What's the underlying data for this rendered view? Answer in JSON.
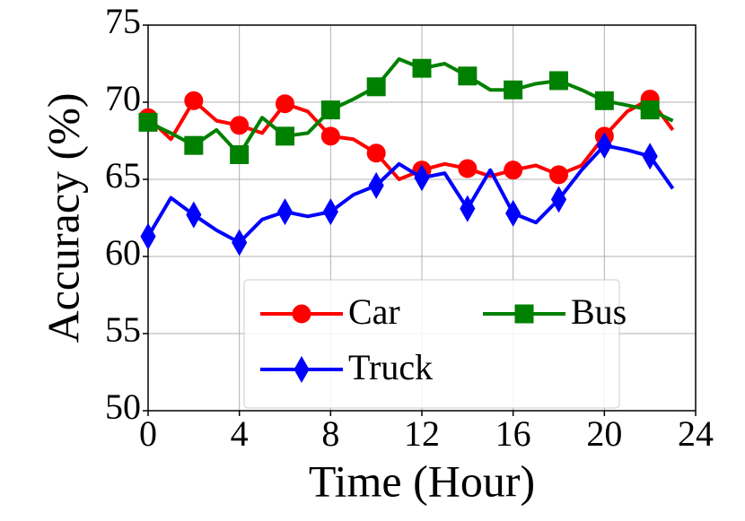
{
  "chart_data": {
    "type": "line",
    "x_label": "Time (Hour)",
    "y_label": "Accuracy (%)",
    "x": [
      0,
      1,
      2,
      3,
      4,
      5,
      6,
      7,
      8,
      9,
      10,
      11,
      12,
      13,
      14,
      15,
      16,
      17,
      18,
      19,
      20,
      21,
      22,
      23
    ],
    "series": [
      {
        "name": "Car",
        "color": "#ff0000",
        "marker": "circle",
        "values": [
          69.0,
          67.6,
          70.1,
          68.8,
          68.5,
          68.0,
          69.9,
          69.4,
          67.8,
          67.6,
          66.7,
          65.0,
          65.6,
          66.0,
          65.7,
          65.2,
          65.6,
          65.9,
          65.3,
          65.9,
          67.8,
          69.4,
          70.2,
          68.2
        ]
      },
      {
        "name": "Bus",
        "color": "#008000",
        "marker": "square",
        "values": [
          68.7,
          68.0,
          67.2,
          68.2,
          66.6,
          69.0,
          67.8,
          68.0,
          69.5,
          70.2,
          71.0,
          72.8,
          72.2,
          72.5,
          71.7,
          70.8,
          70.8,
          71.2,
          71.4,
          70.8,
          70.1,
          69.8,
          69.5,
          68.8
        ]
      },
      {
        "name": "Truck",
        "color": "#0000ff",
        "marker": "diamond",
        "values": [
          61.3,
          63.8,
          62.7,
          61.7,
          60.9,
          62.4,
          62.9,
          62.6,
          62.9,
          64.0,
          64.6,
          66.0,
          65.1,
          65.4,
          63.1,
          65.6,
          62.8,
          62.2,
          63.7,
          65.6,
          67.2,
          66.9,
          66.5,
          64.4
        ]
      }
    ],
    "markevery": 2,
    "xlim": [
      0,
      24
    ],
    "xticks": [
      0,
      4,
      8,
      12,
      16,
      20,
      24
    ],
    "ylim": [
      50,
      75
    ],
    "yticks": [
      50,
      55,
      60,
      65,
      70,
      75
    ],
    "grid": true,
    "legend_position": "lower center",
    "legend_columns": 2
  }
}
